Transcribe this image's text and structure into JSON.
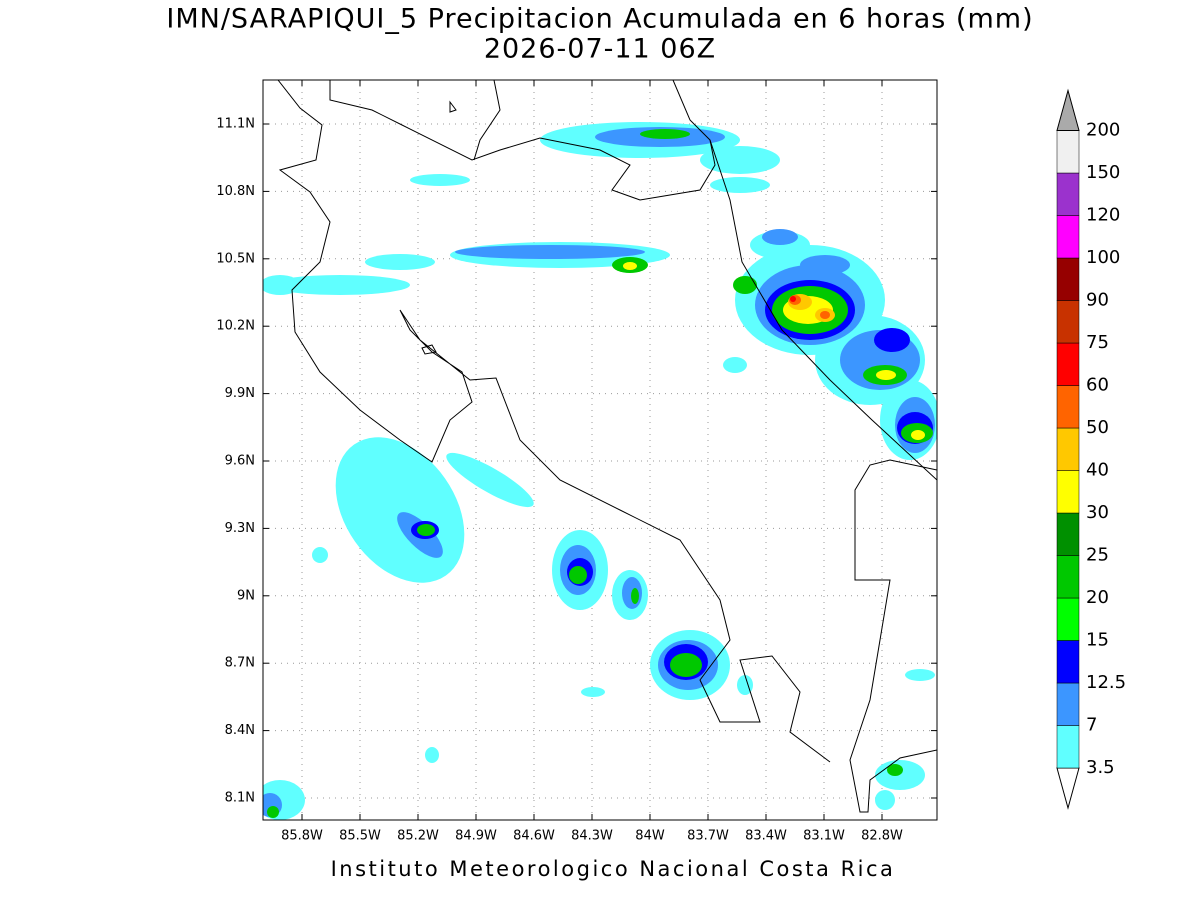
{
  "title": "IMN/SARAPIQUI_5 Precipitacion Acumulada en 6 horas (mm)",
  "subtitle": "2026-07-11 06Z",
  "map": {
    "lat_labels": [
      "11.1N",
      "10.8N",
      "10.5N",
      "10.2N",
      "9.9N",
      "9.6N",
      "9.3N",
      "9N",
      "8.7N",
      "8.4N",
      "8.1N"
    ],
    "lon_labels": [
      "85.8W",
      "85.5W",
      "85.2W",
      "84.9W",
      "84.6W",
      "84.3W",
      "84W",
      "83.7W",
      "83.4W",
      "83.1W",
      "82.8W"
    ]
  },
  "colorbar": {
    "levels": [
      3.5,
      7,
      12.5,
      15,
      20,
      25,
      30,
      40,
      50,
      60,
      75,
      90,
      100,
      120,
      150,
      200
    ],
    "colors": [
      "#ffffff",
      "#60ffff",
      "#3c96ff",
      "#0000ff",
      "#00ff00",
      "#00c800",
      "#009000",
      "#ffff00",
      "#ffc800",
      "#ff6400",
      "#ff0000",
      "#c83200",
      "#960000",
      "#ff00ff",
      "#9b32cd",
      "#f0f0f0",
      "#aaaaaa"
    ]
  },
  "footer": "Instituto Meteorologico Nacional Costa Rica"
}
